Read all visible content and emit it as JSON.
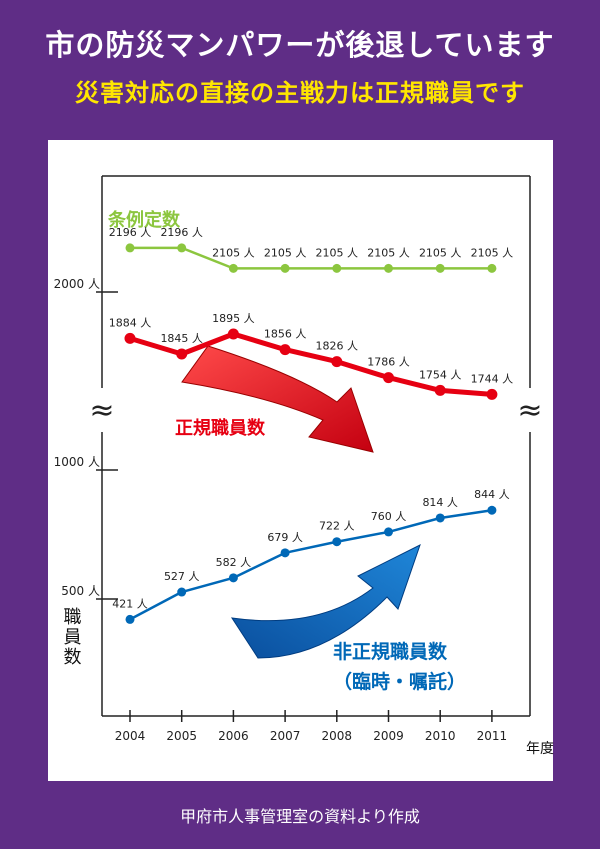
{
  "header": {
    "title": "市の防災マンパワーが後退しています",
    "subtitle": "災害対応の直接の主戦力は正規職員です"
  },
  "source_note": "甲府市人事管理室の資料より作成",
  "colors": {
    "background": "#5f2d86",
    "ordinance": "#8cc63f",
    "regular": "#e60012",
    "nonregular": "#0068b7",
    "subtitle": "#ffe600"
  },
  "chart_data": {
    "type": "line",
    "title": "",
    "xlabel": "年度",
    "ylabel": "職員数",
    "x": [
      "2004",
      "2005",
      "2006",
      "2007",
      "2008",
      "2009",
      "2010",
      "2011"
    ],
    "yticks": [
      "2000 人",
      "1000 人",
      "500 人"
    ],
    "axis_break": "≈",
    "unit": "人",
    "series": [
      {
        "name": "条例定数",
        "key": "ordinance",
        "values": [
          2196,
          2196,
          2105,
          2105,
          2105,
          2105,
          2105,
          2105
        ],
        "labels": [
          "2196 人",
          "2196 人",
          "2105 人",
          "2105 人",
          "2105 人",
          "2105 人",
          "2105 人",
          "2105 人"
        ]
      },
      {
        "name": "正規職員数",
        "key": "regular",
        "values": [
          1884,
          1845,
          1895,
          1856,
          1826,
          1786,
          1754,
          1744
        ],
        "labels": [
          "1884 人",
          "1845 人",
          "1895 人",
          "1856 人",
          "1826 人",
          "1786 人",
          "1754 人",
          "1744 人"
        ]
      },
      {
        "name": "非正規職員数",
        "name_sub": "（臨時・嘱託）",
        "key": "nonregular",
        "values": [
          421,
          527,
          582,
          679,
          722,
          760,
          814,
          844
        ],
        "labels": [
          "421 人",
          "527 人",
          "582 人",
          "679 人",
          "722 人",
          "760 人",
          "814 人",
          "844 人"
        ]
      }
    ]
  }
}
